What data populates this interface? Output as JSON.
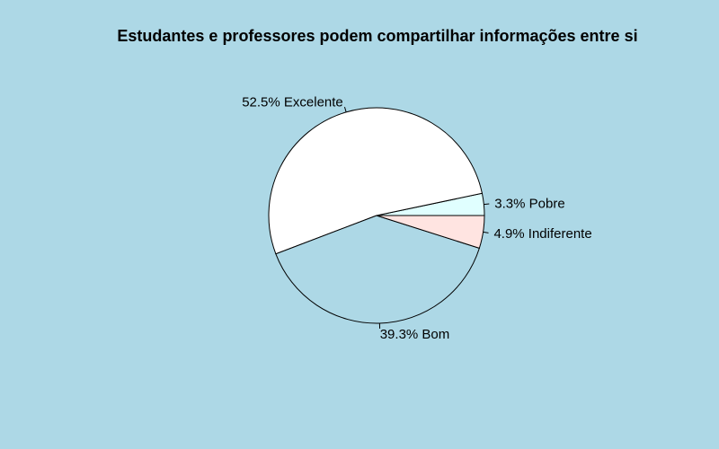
{
  "chart_data": {
    "type": "pie",
    "title": "Estudantes e professores podem compartilhar informações entre si",
    "direction": "counterclockwise",
    "start_angle_deg": 0,
    "slices": [
      {
        "label": "3.3% Pobre",
        "category": "Pobre",
        "percent": 3.3,
        "color": "#E0FFFF"
      },
      {
        "label": "52.5% Excelente",
        "category": "Excelente",
        "percent": 52.5,
        "color": "#FFFFFF"
      },
      {
        "label": "39.3% Bom",
        "category": "Bom",
        "percent": 39.3,
        "color": "#ADD8E6"
      },
      {
        "label": "4.9% Indiferente",
        "category": "Indiferente",
        "percent": 4.9,
        "color": "#FFE4E1"
      }
    ]
  }
}
